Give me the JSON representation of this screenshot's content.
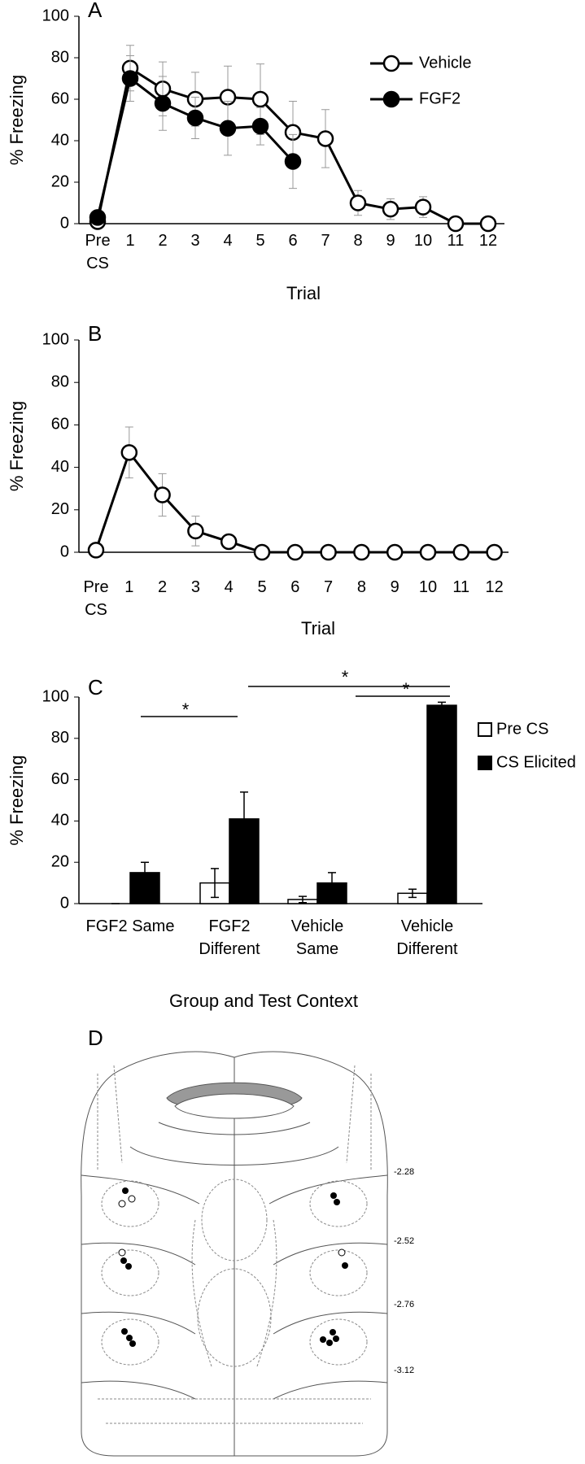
{
  "chart_data": [
    {
      "type": "line",
      "panel": "A",
      "ylabel": "% Freezing",
      "xlabel": "Trial",
      "categories": [
        "Pre CS",
        "1",
        "2",
        "3",
        "4",
        "5",
        "6",
        "7",
        "8",
        "9",
        "10",
        "11",
        "12"
      ],
      "series": [
        {
          "name": "Vehicle",
          "color": "#ffffff",
          "values": [
            1,
            75,
            65,
            60,
            61,
            60,
            44,
            41,
            10,
            7,
            8,
            0,
            0
          ],
          "errors": [
            1,
            11,
            13,
            13,
            15,
            17,
            15,
            14,
            6,
            5,
            5,
            0,
            0
          ]
        },
        {
          "name": "FGF2",
          "color": "#000000",
          "values": [
            3,
            70,
            58,
            51,
            46,
            47,
            30,
            null,
            null,
            null,
            null,
            null,
            null
          ],
          "errors": [
            1,
            11,
            13,
            10,
            13,
            9,
            13,
            null,
            null,
            null,
            null,
            null,
            null
          ]
        }
      ],
      "ylim": [
        0,
        100
      ],
      "yticks": [
        0,
        20,
        40,
        60,
        80,
        100
      ],
      "legend": "top-right"
    },
    {
      "type": "line",
      "panel": "B",
      "ylabel": "% Freezing",
      "xlabel": "Trial",
      "categories": [
        "Pre CS",
        "1",
        "2",
        "3",
        "4",
        "5",
        "6",
        "7",
        "8",
        "9",
        "10",
        "11",
        "12"
      ],
      "series": [
        {
          "name": "Vehicle",
          "color": "#ffffff",
          "values": [
            1,
            47,
            27,
            10,
            5,
            0,
            0,
            0,
            0,
            0,
            0,
            0,
            0
          ],
          "errors": [
            0,
            12,
            10,
            7,
            0,
            0,
            0,
            0,
            0,
            0,
            0,
            0,
            0
          ]
        }
      ],
      "ylim": [
        0,
        100
      ],
      "yticks": [
        0,
        20,
        40,
        60,
        80,
        100
      ]
    },
    {
      "type": "bar",
      "panel": "C",
      "ylabel": "% Freezing",
      "xlabel": "Group and Test Context",
      "categories": [
        "FGF2 Same",
        "FGF2 Different",
        "Vehicle Same",
        "Vehicle Different"
      ],
      "series": [
        {
          "name": "Pre CS",
          "color": "#ffffff",
          "values": [
            0,
            10,
            2,
            5
          ],
          "errors": [
            0,
            7,
            1.5,
            2
          ]
        },
        {
          "name": "CS Elicited",
          "color": "#000000",
          "values": [
            15,
            41,
            10,
            96
          ],
          "errors": [
            5,
            13,
            5,
            1.5
          ]
        }
      ],
      "ylim": [
        0,
        100
      ],
      "yticks": [
        0,
        20,
        40,
        60,
        80,
        100
      ],
      "legend": "top-right",
      "annotations": [
        "*",
        "*",
        "*"
      ]
    }
  ],
  "panel_d": {
    "letter": "D",
    "labels": [
      "-2.28",
      "-2.52",
      "-2.76",
      "-3.12"
    ]
  }
}
